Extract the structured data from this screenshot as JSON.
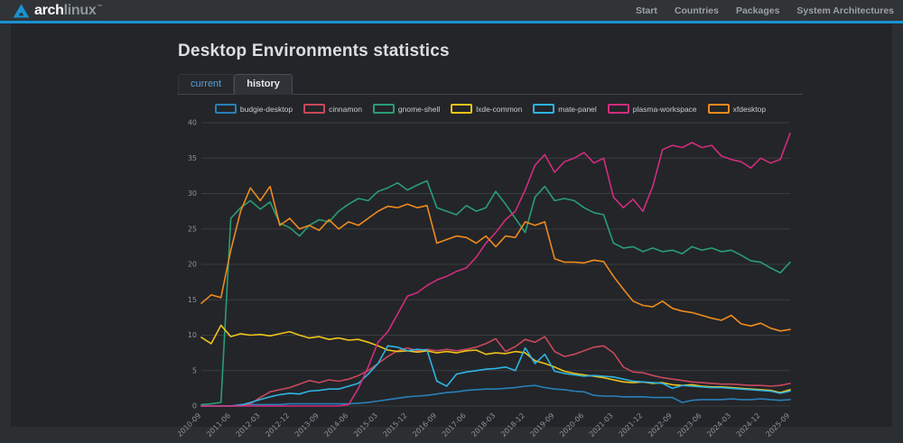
{
  "header": {
    "logo": {
      "brand_bold": "arch",
      "brand_light": "linux",
      "tm": "™"
    },
    "nav": [
      {
        "label": "Start"
      },
      {
        "label": "Countries"
      },
      {
        "label": "Packages"
      },
      {
        "label": "System Architectures"
      }
    ]
  },
  "page": {
    "title": "Desktop Environments statistics"
  },
  "tabs": [
    {
      "label": "current",
      "active": false
    },
    {
      "label": "history",
      "active": true
    }
  ],
  "colors": {
    "accent_blue": "#1793d1",
    "panel_bg": "#232529",
    "body_bg": "#2c2f31",
    "grid": "#3a3d40",
    "tick_text": "#8f9397"
  },
  "chart_data": {
    "type": "line",
    "title": "Desktop Environments statistics — history",
    "xlabel": "",
    "ylabel": "",
    "ylim": [
      0,
      40
    ],
    "yticks": [
      0,
      5,
      10,
      15,
      20,
      25,
      30,
      35,
      40
    ],
    "grid": true,
    "legend_position": "top",
    "x_range_note": "monthly from 2010-09 to 2025-09, stored at quarterly resolution",
    "points": 61,
    "x_tick_every": 3,
    "x_tick_labels": [
      "2010-09",
      "2011-06",
      "2012-03",
      "2012-12",
      "2013-09",
      "2014-06",
      "2015-03",
      "2015-12",
      "2016-09",
      "2017-06",
      "2018-03",
      "2018-12",
      "2019-09",
      "2020-06",
      "2021-03",
      "2021-12",
      "2022-09",
      "2023-06",
      "2024-03",
      "2024-12",
      "2025-09"
    ],
    "series": [
      {
        "name": "budgie-desktop",
        "color": "#2980b9",
        "values": [
          0,
          0,
          0,
          0,
          0.2,
          0.2,
          0.2,
          0.2,
          0.2,
          0.3,
          0.3,
          0.3,
          0.3,
          0.3,
          0.3,
          0.3,
          0.4,
          0.5,
          0.7,
          0.9,
          1.1,
          1.3,
          1.4,
          1.5,
          1.7,
          1.9,
          2.0,
          2.2,
          2.3,
          2.4,
          2.4,
          2.5,
          2.6,
          2.8,
          2.9,
          2.6,
          2.4,
          2.3,
          2.1,
          2.0,
          1.5,
          1.4,
          1.4,
          1.3,
          1.3,
          1.3,
          1.2,
          1.2,
          1.2,
          0.5,
          0.8,
          0.9,
          0.9,
          0.9,
          1.0,
          0.9,
          0.9,
          1.0,
          0.9,
          0.8,
          0.9
        ]
      },
      {
        "name": "cinnamon",
        "color": "#c9485b",
        "values": [
          0,
          0,
          0,
          0,
          0,
          0.3,
          1.2,
          2.0,
          2.3,
          2.6,
          3.1,
          3.6,
          3.3,
          3.7,
          3.5,
          3.8,
          4.3,
          5.0,
          6.0,
          7.0,
          7.8,
          8.2,
          7.8,
          8.0,
          7.8,
          8.0,
          7.8,
          8.0,
          8.3,
          8.8,
          9.5,
          7.7,
          8.4,
          9.4,
          9.0,
          9.8,
          7.7,
          7.0,
          7.3,
          7.8,
          8.3,
          8.5,
          7.5,
          5.5,
          4.8,
          4.7,
          4.3,
          4.0,
          3.8,
          3.6,
          3.4,
          3.3,
          3.2,
          3.1,
          3.1,
          3.0,
          2.9,
          2.9,
          2.8,
          2.9,
          3.2
        ]
      },
      {
        "name": "gnome-shell",
        "color": "#2a9d72",
        "values": [
          0.2,
          0.3,
          0.5,
          26.5,
          28.0,
          29.0,
          27.8,
          28.8,
          25.8,
          25.2,
          24.0,
          25.5,
          26.3,
          26.0,
          27.5,
          28.5,
          29.3,
          29.0,
          30.3,
          30.8,
          31.5,
          30.5,
          31.2,
          31.8,
          28.0,
          27.5,
          27.0,
          28.3,
          27.5,
          28.0,
          30.3,
          28.5,
          26.5,
          24.5,
          29.5,
          31.0,
          29.0,
          29.3,
          29.0,
          28.0,
          27.3,
          27.0,
          23.0,
          22.3,
          22.5,
          21.8,
          22.3,
          21.8,
          22.0,
          21.5,
          22.5,
          22.0,
          22.3,
          21.8,
          22.0,
          21.3,
          20.5,
          20.3,
          19.5,
          18.8,
          20.3
        ]
      },
      {
        "name": "lxde-common",
        "color": "#efc319",
        "values": [
          9.7,
          8.8,
          11.4,
          9.8,
          10.2,
          10.0,
          10.1,
          9.9,
          10.2,
          10.5,
          10.0,
          9.6,
          9.8,
          9.4,
          9.6,
          9.3,
          9.4,
          9.0,
          8.5,
          7.9,
          7.7,
          7.8,
          7.6,
          7.8,
          7.5,
          7.7,
          7.5,
          7.8,
          7.9,
          7.3,
          7.5,
          7.4,
          7.7,
          7.5,
          6.4,
          6.0,
          5.5,
          4.9,
          4.6,
          4.4,
          4.2,
          4.0,
          3.7,
          3.4,
          3.3,
          3.4,
          3.2,
          3.3,
          3.0,
          2.9,
          3.0,
          2.8,
          2.7,
          2.7,
          2.6,
          2.5,
          2.4,
          2.3,
          2.2,
          1.9,
          2.3
        ]
      },
      {
        "name": "mate-panel",
        "color": "#2eb4e2",
        "values": [
          0,
          0,
          0,
          0,
          0.1,
          0.5,
          0.9,
          1.3,
          1.6,
          1.8,
          1.7,
          2.1,
          2.2,
          2.4,
          2.4,
          2.8,
          3.2,
          4.5,
          6.0,
          8.5,
          8.3,
          7.8,
          8.0,
          7.9,
          3.5,
          2.8,
          4.5,
          4.8,
          5.0,
          5.2,
          5.3,
          5.5,
          5.0,
          8.2,
          6.0,
          7.3,
          4.9,
          4.6,
          4.4,
          4.2,
          4.3,
          4.2,
          4.1,
          3.8,
          3.5,
          3.4,
          3.3,
          3.2,
          2.5,
          2.9,
          2.8,
          2.7,
          2.6,
          2.6,
          2.5,
          2.4,
          2.3,
          2.2,
          2.1,
          1.8,
          2.1
        ]
      },
      {
        "name": "plasma-workspace",
        "color": "#d12d7d",
        "values": [
          0,
          0,
          0,
          0,
          0,
          0,
          0,
          0,
          0,
          0,
          0,
          0,
          0,
          0,
          0,
          0.2,
          2.5,
          5.5,
          9.0,
          10.5,
          13.0,
          15.5,
          16.0,
          17.0,
          17.8,
          18.3,
          19.0,
          19.5,
          21.0,
          23.0,
          24.5,
          26.3,
          27.5,
          30.5,
          34.0,
          35.5,
          33.0,
          34.5,
          35.0,
          35.8,
          34.3,
          35.0,
          29.5,
          28.0,
          29.2,
          27.5,
          31.0,
          36.2,
          36.8,
          36.5,
          37.2,
          36.5,
          36.8,
          35.3,
          34.8,
          34.5,
          33.6,
          35.0,
          34.3,
          34.8,
          38.5
        ]
      },
      {
        "name": "xfdesktop",
        "color": "#ee8a1c",
        "values": [
          14.5,
          15.7,
          15.3,
          22.0,
          27.5,
          30.8,
          29.0,
          31.0,
          25.5,
          26.5,
          25.0,
          25.5,
          24.8,
          26.3,
          25.0,
          26.0,
          25.5,
          26.5,
          27.5,
          28.2,
          28.0,
          28.5,
          28.0,
          28.3,
          23.0,
          23.5,
          24.0,
          23.8,
          23.0,
          24.0,
          22.5,
          24.0,
          23.8,
          26.0,
          25.5,
          26.0,
          20.8,
          20.3,
          20.3,
          20.2,
          20.6,
          20.4,
          18.3,
          16.5,
          14.8,
          14.2,
          14.0,
          14.8,
          13.8,
          13.4,
          13.2,
          12.8,
          12.4,
          12.1,
          12.8,
          11.6,
          11.3,
          11.7,
          11.0,
          10.6,
          10.8
        ]
      }
    ]
  }
}
